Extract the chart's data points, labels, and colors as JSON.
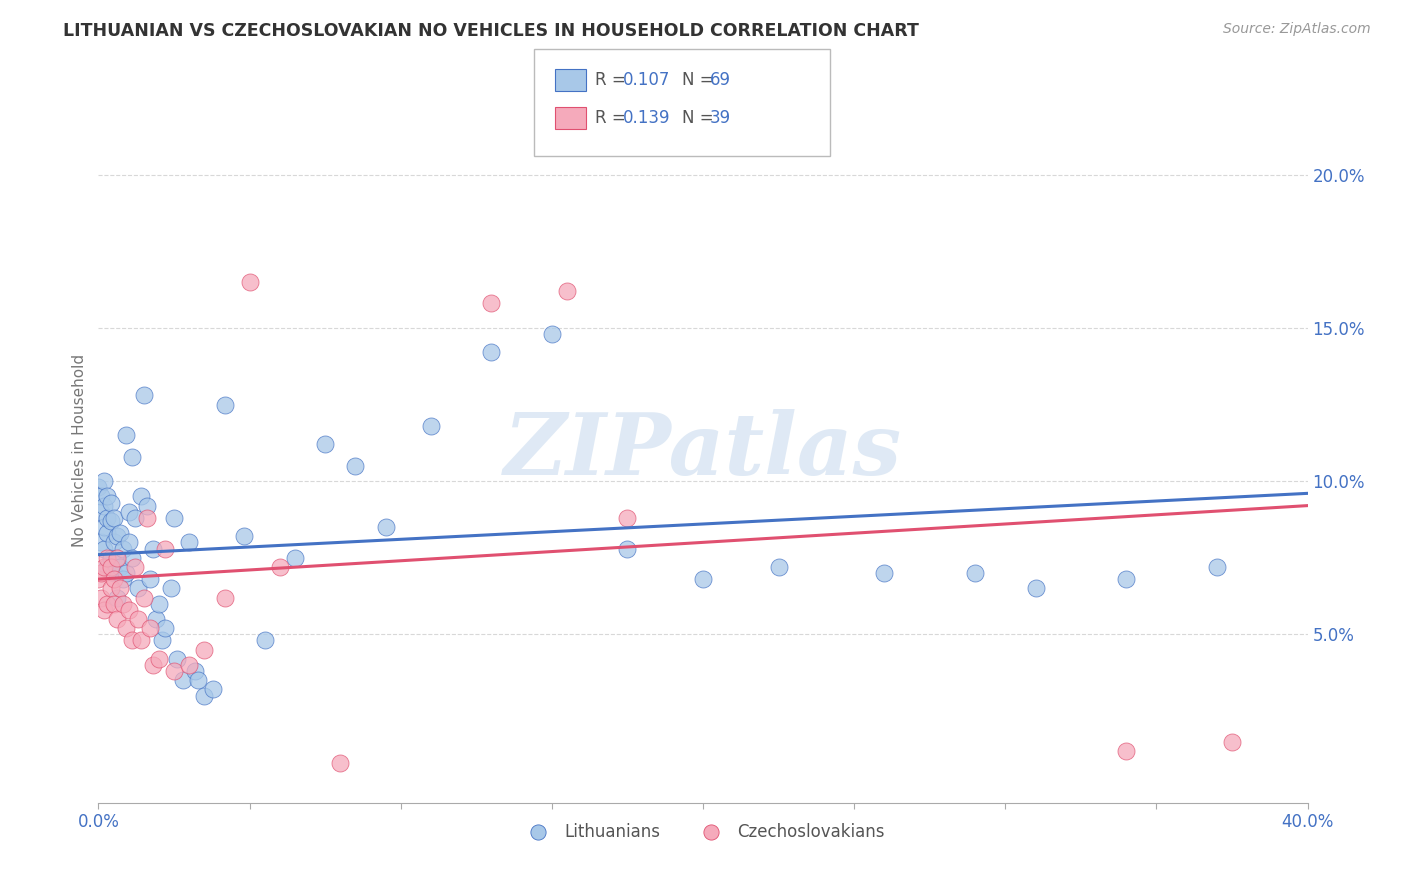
{
  "title": "LITHUANIAN VS CZECHOSLOVAKIAN NO VEHICLES IN HOUSEHOLD CORRELATION CHART",
  "source": "Source: ZipAtlas.com",
  "ylabel": "No Vehicles in Household",
  "yticks": [
    0.05,
    0.1,
    0.15,
    0.2
  ],
  "ytick_labels": [
    "5.0%",
    "10.0%",
    "15.0%",
    "20.0%"
  ],
  "xlim": [
    0.0,
    0.4
  ],
  "ylim": [
    -0.005,
    0.225
  ],
  "legend1_r": "0.107",
  "legend1_n": "69",
  "legend2_r": "0.139",
  "legend2_n": "39",
  "color_blue": "#a8c8e8",
  "color_pink": "#f5aabb",
  "line_color_blue": "#4472c4",
  "line_color_pink": "#e05070",
  "text_color_blue": "#4472c4",
  "background_color": "#ffffff",
  "grid_color": "#d8d8d8",
  "watermark": "ZIPatlas",
  "blue_x": [
    0.0,
    0.001,
    0.001,
    0.001,
    0.002,
    0.002,
    0.002,
    0.002,
    0.003,
    0.003,
    0.003,
    0.003,
    0.004,
    0.004,
    0.004,
    0.005,
    0.005,
    0.005,
    0.006,
    0.006,
    0.006,
    0.007,
    0.007,
    0.008,
    0.008,
    0.009,
    0.009,
    0.01,
    0.01,
    0.011,
    0.011,
    0.012,
    0.013,
    0.014,
    0.015,
    0.016,
    0.017,
    0.018,
    0.019,
    0.02,
    0.021,
    0.022,
    0.024,
    0.025,
    0.026,
    0.028,
    0.03,
    0.032,
    0.033,
    0.035,
    0.038,
    0.042,
    0.048,
    0.055,
    0.065,
    0.075,
    0.085,
    0.095,
    0.11,
    0.13,
    0.15,
    0.175,
    0.2,
    0.225,
    0.26,
    0.29,
    0.31,
    0.34,
    0.37
  ],
  "blue_y": [
    0.098,
    0.08,
    0.09,
    0.095,
    0.078,
    0.085,
    0.092,
    0.1,
    0.072,
    0.083,
    0.088,
    0.095,
    0.075,
    0.087,
    0.093,
    0.08,
    0.07,
    0.088,
    0.062,
    0.075,
    0.082,
    0.072,
    0.083,
    0.068,
    0.078,
    0.115,
    0.07,
    0.09,
    0.08,
    0.075,
    0.108,
    0.088,
    0.065,
    0.095,
    0.128,
    0.092,
    0.068,
    0.078,
    0.055,
    0.06,
    0.048,
    0.052,
    0.065,
    0.088,
    0.042,
    0.035,
    0.08,
    0.038,
    0.035,
    0.03,
    0.032,
    0.125,
    0.082,
    0.048,
    0.075,
    0.112,
    0.105,
    0.085,
    0.118,
    0.142,
    0.148,
    0.078,
    0.068,
    0.072,
    0.07,
    0.07,
    0.065,
    0.068,
    0.072
  ],
  "pink_x": [
    0.0,
    0.001,
    0.001,
    0.002,
    0.002,
    0.003,
    0.003,
    0.004,
    0.004,
    0.005,
    0.005,
    0.006,
    0.006,
    0.007,
    0.008,
    0.009,
    0.01,
    0.011,
    0.012,
    0.013,
    0.014,
    0.015,
    0.016,
    0.017,
    0.018,
    0.02,
    0.022,
    0.025,
    0.03,
    0.035,
    0.042,
    0.05,
    0.06,
    0.08,
    0.13,
    0.155,
    0.175,
    0.34,
    0.375
  ],
  "pink_y": [
    0.068,
    0.062,
    0.07,
    0.058,
    0.072,
    0.06,
    0.075,
    0.065,
    0.072,
    0.06,
    0.068,
    0.075,
    0.055,
    0.065,
    0.06,
    0.052,
    0.058,
    0.048,
    0.072,
    0.055,
    0.048,
    0.062,
    0.088,
    0.052,
    0.04,
    0.042,
    0.078,
    0.038,
    0.04,
    0.045,
    0.062,
    0.165,
    0.072,
    0.008,
    0.158,
    0.162,
    0.088,
    0.012,
    0.015
  ],
  "blue_line_start_y": 0.076,
  "blue_line_end_y": 0.096,
  "pink_line_start_y": 0.068,
  "pink_line_end_y": 0.092
}
